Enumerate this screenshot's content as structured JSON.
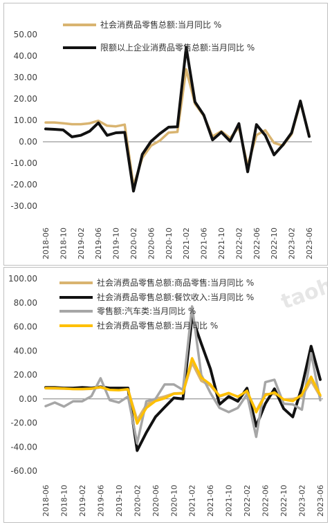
{
  "chart_data": [
    {
      "type": "line",
      "x": [
        "2018-06",
        "2018-08",
        "2018-10",
        "2018-12",
        "2019-02",
        "2019-04",
        "2019-06",
        "2019-08",
        "2019-10",
        "2019-12",
        "2020-02",
        "2020-04",
        "2020-06",
        "2020-08",
        "2020-10",
        "2020-12",
        "2021-02",
        "2021-04",
        "2021-06",
        "2021-08",
        "2021-10",
        "2021-12",
        "2022-02",
        "2022-04",
        "2022-06",
        "2022-08",
        "2022-10",
        "2022-12",
        "2023-02",
        "2023-04",
        "2023-06"
      ],
      "xtick_labels": [
        "2018-06",
        "2018-10",
        "2019-02",
        "2019-06",
        "2019-10",
        "2020-02",
        "2020-06",
        "2020-10",
        "2021-02",
        "2021-06",
        "2021-10",
        "2022-02",
        "2022-06",
        "2022-10",
        "2023-02",
        "2023-06"
      ],
      "ytick_labels": [
        "50.00",
        "40.00",
        "30.00",
        "20.00",
        "10.00",
        "0.00",
        "-10.00",
        "-20.00",
        "-30.00"
      ],
      "ylim": [
        -30,
        50
      ],
      "legend_position": "top",
      "series": [
        {
          "name": "社会消费品零售总额:当月同比 %",
          "color": "#d9b470",
          "values": [
            9.0,
            9.0,
            8.6,
            8.2,
            8.2,
            8.6,
            9.8,
            7.5,
            7.2,
            8.0,
            -20.5,
            -7.5,
            -1.8,
            0.5,
            4.3,
            4.6,
            33.8,
            17.7,
            12.1,
            2.5,
            4.9,
            1.7,
            6.7,
            -11.1,
            3.1,
            5.4,
            -0.5,
            -1.8,
            3.5,
            18.4,
            3.1
          ]
        },
        {
          "name": "限额以上企业消费品零售总额:当月同比 %",
          "color": "#111111",
          "values": [
            6.0,
            5.8,
            5.5,
            2.3,
            3.0,
            4.9,
            8.8,
            3.0,
            4.2,
            4.4,
            -23.0,
            -5.9,
            0.2,
            3.8,
            6.8,
            7.0,
            44.0,
            18.6,
            12.5,
            0.9,
            4.5,
            0.3,
            8.5,
            -14.0,
            8.0,
            3.0,
            -6.1,
            -1.5,
            4.2,
            19.0,
            2.5
          ]
        }
      ]
    },
    {
      "type": "line",
      "x": [
        "2018-06",
        "2018-08",
        "2018-10",
        "2018-12",
        "2019-02",
        "2019-04",
        "2019-06",
        "2019-08",
        "2019-10",
        "2019-12",
        "2020-02",
        "2020-04",
        "2020-06",
        "2020-08",
        "2020-10",
        "2020-12",
        "2021-02",
        "2021-04",
        "2021-06",
        "2021-08",
        "2021-10",
        "2021-12",
        "2022-02",
        "2022-04",
        "2022-06",
        "2022-08",
        "2022-10",
        "2022-12",
        "2023-02",
        "2023-04",
        "2023-06"
      ],
      "xtick_labels": [
        "2018-06",
        "2018-10",
        "2019-02",
        "2019-06",
        "2019-10",
        "2020-02",
        "2020-06",
        "2020-10",
        "2021-02",
        "2021-06",
        "2021-10",
        "2022-02",
        "2022-06",
        "2022-10",
        "2023-02",
        "2023-06"
      ],
      "ytick_labels": [
        "100.00",
        "80.00",
        "60.00",
        "40.00",
        "20.00",
        "0.00",
        "-20.00",
        "-40.00",
        "-60.00"
      ],
      "ylim": [
        -60,
        100
      ],
      "legend_position": "top",
      "series": [
        {
          "name": "社会消费品零售总额:商品零售:当月同比 %",
          "color": "#d9b470",
          "values": [
            8.8,
            8.6,
            8.5,
            8.2,
            8.0,
            8.4,
            9.5,
            7.5,
            7.4,
            7.9,
            -17.5,
            -5.0,
            0.0,
            2.0,
            4.5,
            5.0,
            30.0,
            15.0,
            11.0,
            2.0,
            4.5,
            2.0,
            6.0,
            -10.0,
            4.0,
            4.0,
            -0.5,
            -0.1,
            2.0,
            15.0,
            2.0
          ]
        },
        {
          "name": "社会消费品零售总额:餐饮收入:当月同比 %",
          "color": "#111111",
          "values": [
            9.5,
            9.5,
            9.0,
            9.0,
            9.5,
            9.0,
            10.0,
            9.0,
            9.0,
            9.0,
            -43.0,
            -28.0,
            -15.0,
            -7.0,
            0.8,
            0.0,
            68.0,
            46.0,
            25.0,
            -4.5,
            2.0,
            -2.0,
            8.9,
            -22.7,
            -4.0,
            8.4,
            -8.1,
            -15.0,
            10.0,
            43.8,
            16.1
          ]
        },
        {
          "name": "零售额:汽车类:当月同比 %",
          "color": "#a6a6a6",
          "values": [
            -6.0,
            -3.0,
            -6.4,
            -2.0,
            -2.0,
            2.3,
            17.2,
            -1.0,
            -3.0,
            2.0,
            -37.0,
            -2.0,
            0.0,
            12.0,
            12.0,
            7.5,
            77.0,
            20.0,
            5.0,
            -7.5,
            -11.0,
            -7.5,
            3.8,
            -31.6,
            13.9,
            15.9,
            -4.0,
            -4.6,
            -9.0,
            38.0,
            -1.1
          ]
        },
        {
          "name": "社会消费品零售总额:当月同比 %",
          "color": "#ffc000",
          "values": [
            9.0,
            9.0,
            8.6,
            8.2,
            8.2,
            8.6,
            9.8,
            7.5,
            7.2,
            8.0,
            -20.5,
            -7.5,
            -1.8,
            0.5,
            4.3,
            4.6,
            33.8,
            17.7,
            12.1,
            2.5,
            4.9,
            1.7,
            6.7,
            -11.1,
            3.1,
            5.4,
            -0.5,
            -1.8,
            3.5,
            18.4,
            3.1
          ]
        }
      ]
    }
  ],
  "watermark": "taoh"
}
